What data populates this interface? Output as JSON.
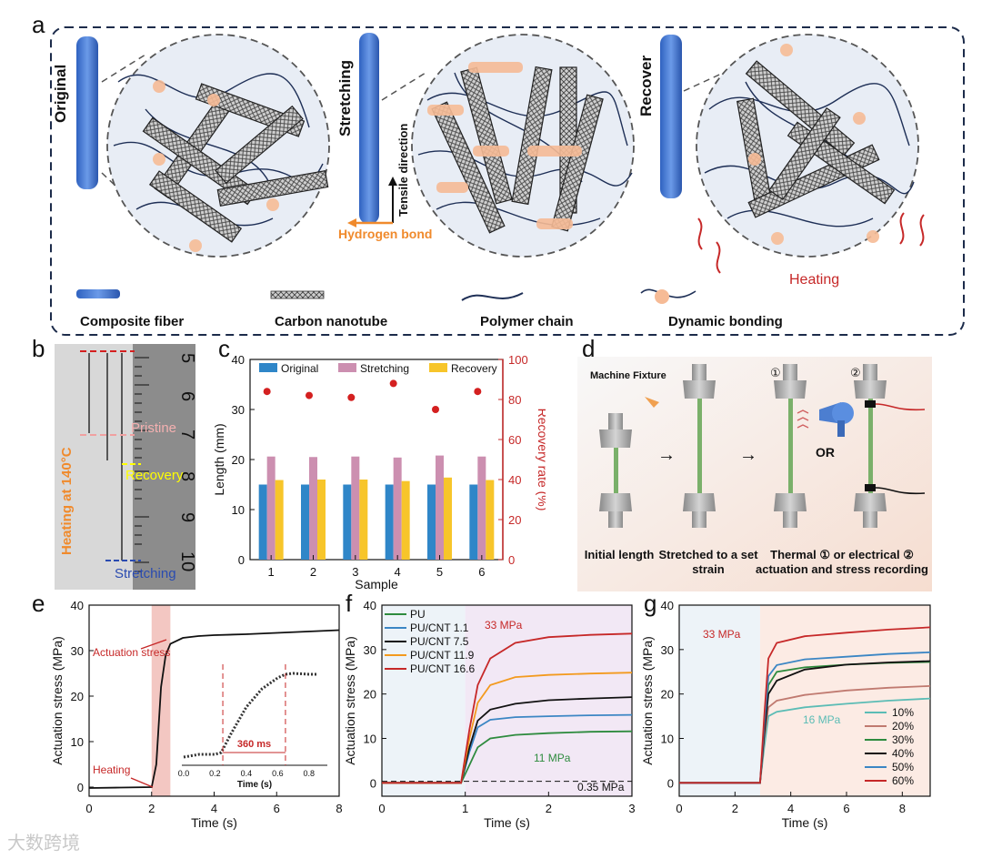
{
  "panel_labels": [
    "a",
    "b",
    "c",
    "d",
    "e",
    "f",
    "g"
  ],
  "panel_a": {
    "stages": [
      "Original",
      "Stretching",
      "Recover"
    ],
    "tensile_label": "Tensile direction",
    "hbond_label": "Hydrogen bond",
    "heating_label": "Heating",
    "legend": [
      "Composite fiber",
      "Carbon nanotube",
      "Polymer chain",
      "Dynamic bonding"
    ]
  },
  "panel_b": {
    "pristine": "Pristine",
    "recovery": "Recovery",
    "stretching": "Stretching",
    "side_label": "Heating at 140°C",
    "ruler_numbers": [
      "5",
      "6",
      "7",
      "8",
      "9",
      "10"
    ]
  },
  "panel_d": {
    "fixture_label": "Machine Fixture",
    "or_label": "OR",
    "circle1": "①",
    "circle2": "②",
    "captions": [
      "Initial length",
      "Stretched to a set strain",
      "Thermal ① or electrical ② actuation and stress recording"
    ],
    "arrow": "→"
  },
  "panel_e": {
    "arrows": [
      "Actuation stress",
      "Heating"
    ],
    "inset_label": "360 ms",
    "inset_xlabel": "Time (s)",
    "inset_ticks": [
      "0.0",
      "0.2",
      "0.4",
      "0.6",
      "0.8"
    ]
  },
  "watermark": "大数跨境",
  "chart_data": [
    {
      "id": "c",
      "type": "bar",
      "xlabel": "Sample",
      "ylabel": "Length (mm)",
      "ylabel_right": "Recovery rate (%)",
      "ylim": [
        0,
        40
      ],
      "ylim_right": [
        0,
        100
      ],
      "yticks": [
        0,
        10,
        20,
        30,
        40
      ],
      "yticks_right": [
        0,
        20,
        40,
        60,
        80,
        100
      ],
      "categories": [
        "1",
        "2",
        "3",
        "4",
        "5",
        "6"
      ],
      "series": [
        {
          "name": "Original",
          "color": "#2f86c8",
          "values": [
            15.0,
            15.0,
            15.0,
            15.0,
            15.0,
            15.0
          ]
        },
        {
          "name": "Stretching",
          "color": "#cc8fb0",
          "values": [
            20.6,
            20.5,
            20.6,
            20.4,
            20.8,
            20.6
          ]
        },
        {
          "name": "Recovery",
          "color": "#f7c52a",
          "values": [
            15.9,
            16.0,
            16.0,
            15.7,
            16.4,
            15.9
          ]
        }
      ],
      "scatter": {
        "name": "Recovery rate",
        "color": "#d42020",
        "values": [
          84,
          82,
          81,
          88,
          75,
          84
        ]
      }
    },
    {
      "id": "e",
      "type": "line",
      "xlabel": "Time (s)",
      "ylabel": "Actuation stress (MPa)",
      "xlim": [
        0,
        8
      ],
      "ylim": [
        -2,
        40
      ],
      "xticks": [
        0,
        2,
        4,
        6,
        8
      ],
      "yticks": [
        0,
        10,
        20,
        30,
        40
      ],
      "highlight_x": [
        2.0,
        2.6
      ],
      "series": [
        {
          "name": "stress",
          "color": "#111111",
          "x": [
            0,
            1.0,
            2.0,
            2.15,
            2.3,
            2.45,
            2.6,
            3.0,
            3.5,
            4.0,
            5.0,
            6.0,
            7.0,
            8.0
          ],
          "y": [
            -0.2,
            -0.1,
            0,
            5,
            22,
            29,
            31.5,
            32.8,
            33.2,
            33.4,
            33.6,
            33.9,
            34.2,
            34.5
          ]
        }
      ],
      "inset": {
        "xlim": [
          0,
          0.9
        ],
        "x": [
          0.0,
          0.1,
          0.2,
          0.24,
          0.3,
          0.4,
          0.5,
          0.6,
          0.65,
          0.7,
          0.8,
          0.85
        ],
        "y": [
          0.05,
          0.08,
          0.08,
          0.1,
          0.3,
          0.6,
          0.8,
          0.92,
          0.96,
          0.97,
          0.96,
          0.96
        ],
        "marker_x": [
          0.25,
          0.65
        ]
      }
    },
    {
      "id": "f",
      "type": "line",
      "xlabel": "Time (s)",
      "ylabel": "Actuation stress (MPa)",
      "xlim": [
        0,
        3
      ],
      "ylim": [
        -3,
        40
      ],
      "xticks": [
        0,
        1,
        2,
        3
      ],
      "yticks": [
        0,
        10,
        20,
        30,
        40
      ],
      "annotations": [
        "33 MPa",
        "11 MPa",
        "0.35 MPa"
      ],
      "baseline": 0.35,
      "series": [
        {
          "name": "PU",
          "color": "#2e8b3e",
          "x": [
            0,
            0.95,
            1.05,
            1.15,
            1.3,
            1.6,
            2.0,
            2.5,
            3.0
          ],
          "y": [
            0,
            0,
            4,
            8,
            10,
            10.8,
            11.2,
            11.5,
            11.6
          ]
        },
        {
          "name": "PU/CNT 1.1",
          "color": "#3b86c4",
          "x": [
            0,
            0.95,
            1.05,
            1.15,
            1.3,
            1.6,
            2.0,
            2.5,
            3.0
          ],
          "y": [
            0,
            0,
            7,
            12.5,
            14.2,
            14.8,
            15.0,
            15.2,
            15.3
          ]
        },
        {
          "name": "PU/CNT 7.5",
          "color": "#111111",
          "x": [
            0,
            0.95,
            1.05,
            1.15,
            1.3,
            1.6,
            2.0,
            2.5,
            3.0
          ],
          "y": [
            0,
            0,
            8,
            14,
            16.5,
            17.8,
            18.6,
            19.0,
            19.3
          ]
        },
        {
          "name": "PU/CNT 11.9",
          "color": "#f39a1e",
          "x": [
            0,
            0.95,
            1.05,
            1.15,
            1.3,
            1.6,
            2.0,
            2.5,
            3.0
          ],
          "y": [
            0,
            0,
            10,
            18,
            22,
            23.8,
            24.3,
            24.6,
            24.8
          ]
        },
        {
          "name": "PU/CNT 16.6",
          "color": "#c62828",
          "x": [
            0,
            0.95,
            1.05,
            1.15,
            1.3,
            1.6,
            2.0,
            2.5,
            3.0
          ],
          "y": [
            0,
            0,
            12,
            22,
            28,
            31.5,
            32.8,
            33.3,
            33.6
          ]
        }
      ]
    },
    {
      "id": "g",
      "type": "line",
      "xlabel": "Time (s)",
      "ylabel": "Actuation stress (MPa)",
      "xlim": [
        0,
        9
      ],
      "ylim": [
        -3,
        40
      ],
      "xticks": [
        0,
        2,
        4,
        6,
        8
      ],
      "yticks": [
        0,
        10,
        20,
        30,
        40
      ],
      "annotations": [
        "33 MPa",
        "16 MPa"
      ],
      "series": [
        {
          "name": "10%",
          "color": "#5bbcb5",
          "x": [
            0,
            2.9,
            3.05,
            3.2,
            3.5,
            4.5,
            6,
            7.5,
            9
          ],
          "y": [
            0,
            0,
            8,
            15,
            16,
            17,
            17.8,
            18.5,
            19
          ]
        },
        {
          "name": "20%",
          "color": "#c07a70",
          "x": [
            0,
            2.9,
            3.05,
            3.2,
            3.5,
            4.5,
            6,
            7.5,
            9
          ],
          "y": [
            0,
            0,
            10,
            17,
            18.5,
            19.8,
            20.8,
            21.4,
            21.8
          ]
        },
        {
          "name": "30%",
          "color": "#2e8b3e",
          "x": [
            0,
            2.9,
            3.05,
            3.2,
            3.5,
            4.5,
            6,
            7.5,
            9
          ],
          "y": [
            0,
            0,
            12,
            22,
            25,
            26,
            26.6,
            27,
            27.2
          ]
        },
        {
          "name": "40%",
          "color": "#111111",
          "x": [
            0,
            2.9,
            3.05,
            3.2,
            3.5,
            4.5,
            6,
            7.5,
            9
          ],
          "y": [
            0,
            0,
            11,
            20,
            23,
            25.5,
            26.6,
            27.1,
            27.4
          ]
        },
        {
          "name": "50%",
          "color": "#3b86c4",
          "x": [
            0,
            2.9,
            3.05,
            3.2,
            3.5,
            4.5,
            6,
            7.5,
            9
          ],
          "y": [
            0,
            0,
            13,
            24,
            26.5,
            27.8,
            28.4,
            29,
            29.4
          ]
        },
        {
          "name": "60%",
          "color": "#c62828",
          "x": [
            0,
            2.9,
            3.05,
            3.2,
            3.5,
            4.5,
            6,
            7.5,
            9
          ],
          "y": [
            0,
            0,
            15,
            28,
            31.5,
            33,
            33.8,
            34.5,
            35
          ]
        }
      ]
    }
  ]
}
